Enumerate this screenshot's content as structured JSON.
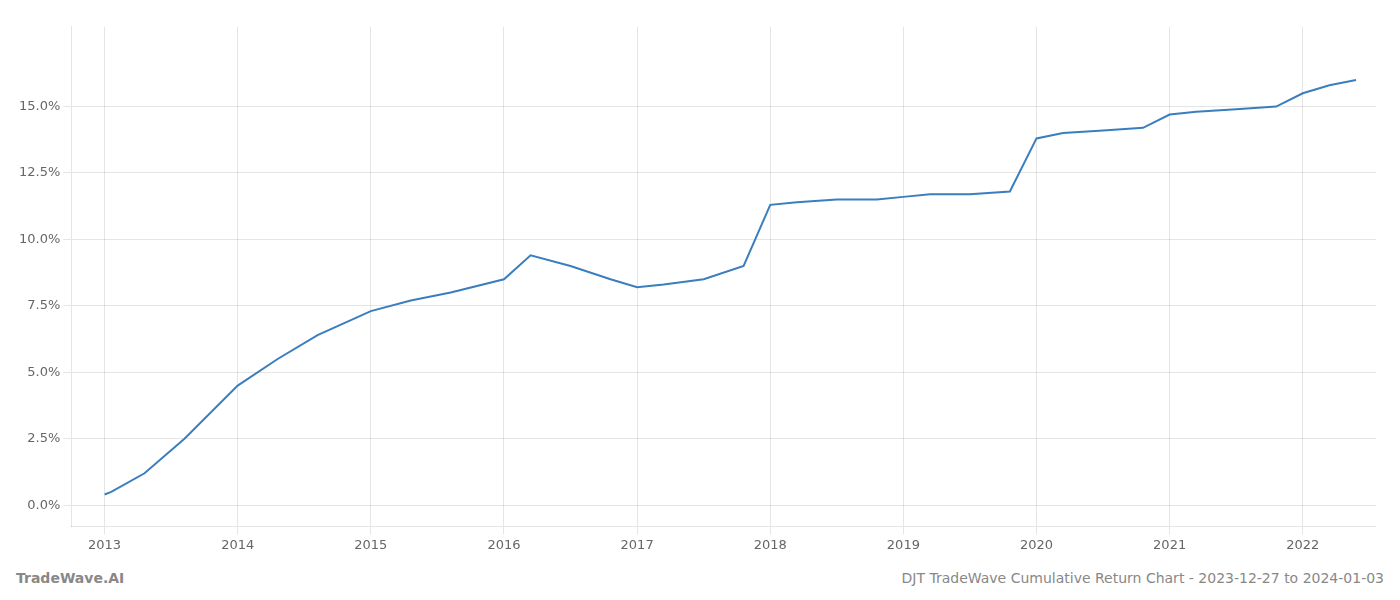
{
  "chart_data": {
    "type": "line",
    "title": "DJT TradeWave Cumulative Return Chart - 2023-12-27 to 2024-01-03",
    "annotations": [
      "TradeWave.AI"
    ],
    "x": [
      2013.0,
      2013.05,
      2013.3,
      2013.6,
      2014.0,
      2014.3,
      2014.6,
      2015.0,
      2015.3,
      2015.6,
      2016.0,
      2016.2,
      2016.5,
      2016.8,
      2017.0,
      2017.2,
      2017.5,
      2017.8,
      2018.0,
      2018.2,
      2018.5,
      2018.8,
      2019.0,
      2019.2,
      2019.5,
      2019.8,
      2020.0,
      2020.2,
      2020.5,
      2020.8,
      2021.0,
      2021.2,
      2021.5,
      2021.8,
      2022.0,
      2022.2,
      2022.4
    ],
    "values": [
      0.004,
      0.005,
      0.012,
      0.025,
      0.045,
      0.055,
      0.064,
      0.073,
      0.077,
      0.08,
      0.085,
      0.094,
      0.09,
      0.085,
      0.082,
      0.083,
      0.085,
      0.09,
      0.113,
      0.114,
      0.115,
      0.115,
      0.116,
      0.117,
      0.117,
      0.118,
      0.138,
      0.14,
      0.141,
      0.142,
      0.147,
      0.148,
      0.149,
      0.15,
      0.155,
      0.158,
      0.16
    ],
    "color": "#3a7ebf",
    "xlim": [
      2012.75,
      2022.55
    ],
    "ylim": [
      -0.008,
      0.18
    ],
    "xticks": [
      2013,
      2014,
      2015,
      2016,
      2017,
      2018,
      2019,
      2020,
      2021,
      2022
    ],
    "yticks": [
      {
        "value": 0.0,
        "label": "0.0%"
      },
      {
        "value": 0.025,
        "label": "2.5%"
      },
      {
        "value": 0.05,
        "label": "5.0%"
      },
      {
        "value": 0.075,
        "label": "7.5%"
      },
      {
        "value": 0.1,
        "label": "10.0%"
      },
      {
        "value": 0.125,
        "label": "12.5%"
      },
      {
        "value": 0.15,
        "label": "15.0%"
      }
    ],
    "grid": true
  }
}
